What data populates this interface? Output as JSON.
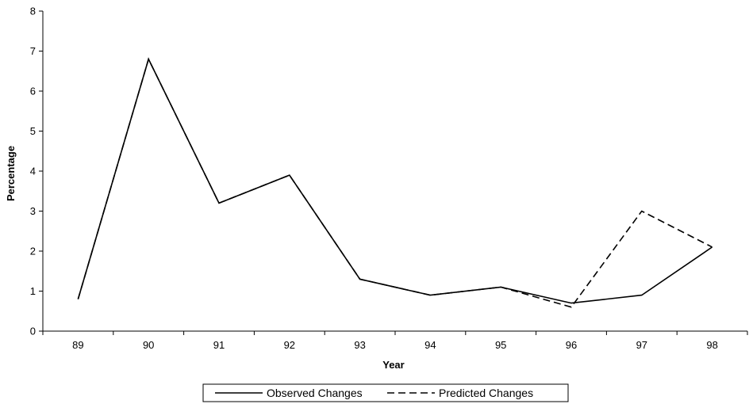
{
  "chart_data": {
    "type": "line",
    "categories": [
      "89",
      "90",
      "91",
      "92",
      "93",
      "94",
      "95",
      "96",
      "97",
      "98"
    ],
    "series": [
      {
        "name": "Observed Changes",
        "values": [
          0.8,
          6.8,
          3.2,
          3.9,
          1.3,
          0.9,
          1.1,
          0.7,
          0.9,
          2.1
        ],
        "style": "solid",
        "color": "#000000"
      },
      {
        "name": "Predicted Changes",
        "values": [
          0.8,
          6.8,
          3.2,
          3.9,
          1.3,
          0.9,
          1.1,
          0.6,
          3.0,
          2.1
        ],
        "style": "dashed",
        "color": "#000000"
      }
    ],
    "xlabel": "Year",
    "ylabel": "Percentage",
    "ylim": [
      0,
      8
    ],
    "yticks": [
      "0",
      "1",
      "2",
      "3",
      "4",
      "5",
      "6",
      "7",
      "8"
    ],
    "grid": false,
    "legend": "bottom"
  }
}
